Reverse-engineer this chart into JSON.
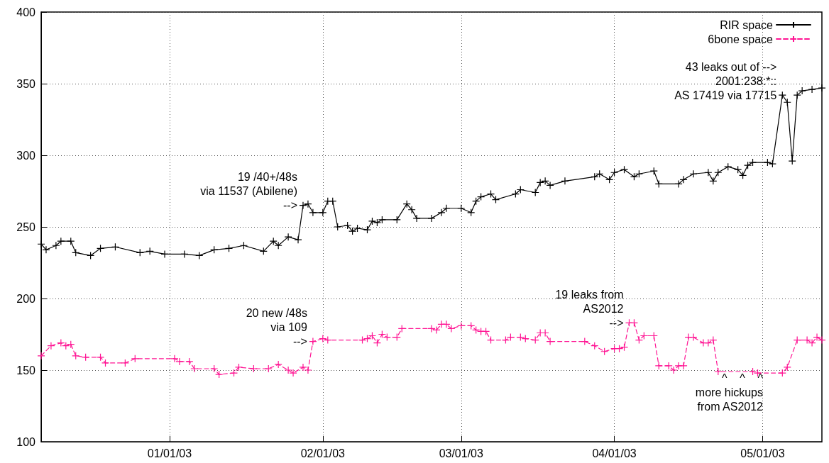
{
  "chart_data": {
    "type": "line",
    "xlim": [
      "2002-12-06",
      "2003-05-13"
    ],
    "ylim": [
      100,
      400
    ],
    "xticks": [
      {
        "value": "2003-01-01",
        "label": "01/01/03"
      },
      {
        "value": "2003-02-01",
        "label": "02/01/03"
      },
      {
        "value": "2003-03-01",
        "label": "03/01/03"
      },
      {
        "value": "2003-04-01",
        "label": "04/01/03"
      },
      {
        "value": "2003-05-01",
        "label": "05/01/03"
      }
    ],
    "yticks": [
      100,
      150,
      200,
      250,
      300,
      350,
      400
    ],
    "grid": true,
    "legend": "top right",
    "marker": "cross",
    "series": [
      {
        "name": "RIR space",
        "color": "#000000",
        "line_style": "solid",
        "x": [
          "2002-12-06",
          "2002-12-07",
          "2002-12-09",
          "2002-12-10",
          "2002-12-12",
          "2002-12-13",
          "2002-12-16",
          "2002-12-18",
          "2002-12-21",
          "2002-12-26",
          "2002-12-28",
          "2002-12-31",
          "2003-01-04",
          "2003-01-07",
          "2003-01-10",
          "2003-01-13",
          "2003-01-16",
          "2003-01-20",
          "2003-01-22",
          "2003-01-23",
          "2003-01-25",
          "2003-01-27",
          "2003-01-28",
          "2003-01-29",
          "2003-01-30",
          "2003-02-01",
          "2003-02-02",
          "2003-02-03",
          "2003-02-04",
          "2003-02-06",
          "2003-02-07",
          "2003-02-08",
          "2003-02-10",
          "2003-02-11",
          "2003-02-12",
          "2003-02-13",
          "2003-02-16",
          "2003-02-18",
          "2003-02-19",
          "2003-02-20",
          "2003-02-23",
          "2003-02-25",
          "2003-02-26",
          "2003-03-01",
          "2003-03-03",
          "2003-03-04",
          "2003-03-05",
          "2003-03-07",
          "2003-03-08",
          "2003-03-12",
          "2003-03-13",
          "2003-03-16",
          "2003-03-17",
          "2003-03-18",
          "2003-03-19",
          "2003-03-22",
          "2003-03-28",
          "2003-03-29",
          "2003-03-31",
          "2003-04-01",
          "2003-04-03",
          "2003-04-05",
          "2003-04-06",
          "2003-04-09",
          "2003-04-10",
          "2003-04-14",
          "2003-04-15",
          "2003-04-17",
          "2003-04-20",
          "2003-04-21",
          "2003-04-22",
          "2003-04-24",
          "2003-04-26",
          "2003-04-27",
          "2003-04-28",
          "2003-04-29",
          "2003-05-02",
          "2003-05-03",
          "2003-05-05",
          "2003-05-06",
          "2003-05-07",
          "2003-05-08",
          "2003-05-09",
          "2003-05-11",
          "2003-05-13"
        ],
        "values": [
          238,
          234,
          237,
          240,
          240,
          232,
          230,
          235,
          236,
          232,
          233,
          231,
          231,
          230,
          234,
          235,
          237,
          233,
          240,
          237,
          243,
          241,
          265,
          266,
          260,
          260,
          268,
          268,
          250,
          251,
          247,
          249,
          248,
          254,
          253,
          255,
          255,
          266,
          262,
          256,
          256,
          260,
          263,
          263,
          260,
          268,
          271,
          273,
          269,
          273,
          276,
          274,
          281,
          282,
          279,
          282,
          285,
          287,
          283,
          288,
          290,
          285,
          287,
          289,
          280,
          280,
          283,
          287,
          288,
          282,
          288,
          292,
          290,
          286,
          293,
          295,
          295,
          294,
          342,
          337,
          296,
          342,
          345,
          346,
          347
        ]
      },
      {
        "name": "6bone space",
        "color": "#ff1493",
        "line_style": "dashed",
        "x": [
          "2002-12-06",
          "2002-12-08",
          "2002-12-10",
          "2002-12-11",
          "2002-12-12",
          "2002-12-13",
          "2002-12-15",
          "2002-12-18",
          "2002-12-19",
          "2002-12-23",
          "2002-12-25",
          "2003-01-02",
          "2003-01-03",
          "2003-01-05",
          "2003-01-06",
          "2003-01-10",
          "2003-01-11",
          "2003-01-14",
          "2003-01-15",
          "2003-01-18",
          "2003-01-21",
          "2003-01-23",
          "2003-01-25",
          "2003-01-26",
          "2003-01-28",
          "2003-01-29",
          "2003-01-30",
          "2003-02-01",
          "2003-02-02",
          "2003-02-09",
          "2003-02-10",
          "2003-02-11",
          "2003-02-12",
          "2003-02-13",
          "2003-02-14",
          "2003-02-16",
          "2003-02-17",
          "2003-02-23",
          "2003-02-24",
          "2003-02-25",
          "2003-02-26",
          "2003-02-27",
          "2003-03-01",
          "2003-03-03",
          "2003-03-04",
          "2003-03-05",
          "2003-03-06",
          "2003-03-07",
          "2003-03-10",
          "2003-03-11",
          "2003-03-13",
          "2003-03-14",
          "2003-03-16",
          "2003-03-17",
          "2003-03-18",
          "2003-03-19",
          "2003-03-26",
          "2003-03-28",
          "2003-03-30",
          "2003-04-01",
          "2003-04-02",
          "2003-04-03",
          "2003-04-04",
          "2003-04-05",
          "2003-04-06",
          "2003-04-07",
          "2003-04-09",
          "2003-04-10",
          "2003-04-12",
          "2003-04-13",
          "2003-04-14",
          "2003-04-15",
          "2003-04-16",
          "2003-04-17",
          "2003-04-19",
          "2003-04-20",
          "2003-04-21",
          "2003-04-22",
          "2003-04-29",
          "2003-04-30",
          "2003-05-05",
          "2003-05-06",
          "2003-05-08",
          "2003-05-10",
          "2003-05-11",
          "2003-05-12",
          "2003-05-13"
        ],
        "values": [
          160,
          167,
          169,
          167,
          168,
          160,
          159,
          159,
          155,
          155,
          158,
          158,
          156,
          156,
          151,
          151,
          147,
          148,
          152,
          151,
          151,
          154,
          150,
          148,
          152,
          150,
          170,
          172,
          171,
          171,
          172,
          174,
          169,
          175,
          173,
          173,
          179,
          179,
          178,
          182,
          182,
          179,
          181,
          181,
          178,
          177,
          177,
          171,
          171,
          173,
          173,
          172,
          171,
          176,
          176,
          170,
          170,
          167,
          163,
          165,
          165,
          166,
          183,
          183,
          171,
          174,
          174,
          153,
          153,
          150,
          153,
          153,
          173,
          173,
          169,
          169,
          171,
          149,
          149,
          148,
          148,
          152,
          171,
          171,
          169,
          173,
          171
        ]
      }
    ],
    "annotations": [
      {
        "text": "19 /40+/48s\nvia 11537 (Abilene)\n-->",
        "x": "2003-01-28",
        "y": 265
      },
      {
        "text": "20 new /48s\nvia 109\n-->",
        "x": "2003-01-30",
        "y": 170
      },
      {
        "text": "19 leaks from\nAS2012\n-->",
        "x": "2003-04-04",
        "y": 183
      },
      {
        "text": "43 leaks out of -->\n2001:238:*::\nAS 17419 via 17715",
        "x": "2003-05-05",
        "y": 342
      },
      "^    ^    ^\nmore hickups\nfrom AS2012"
    ]
  }
}
